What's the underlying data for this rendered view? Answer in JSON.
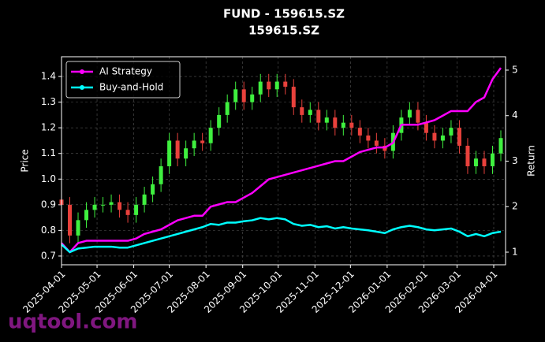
{
  "chart_data": {
    "type": "candlestick",
    "title": "FUND - 159615.SZ",
    "subtitle": "159615.SZ",
    "ylabel": "Price",
    "y2label": "Return",
    "watermark": "uqtool.com",
    "x": [
      "2025-04-01",
      "2025-04-08",
      "2025-04-15",
      "2025-04-22",
      "2025-04-29",
      "2025-05-06",
      "2025-05-13",
      "2025-05-20",
      "2025-05-27",
      "2025-06-03",
      "2025-06-10",
      "2025-06-17",
      "2025-06-24",
      "2025-07-01",
      "2025-07-08",
      "2025-07-15",
      "2025-07-22",
      "2025-07-29",
      "2025-08-05",
      "2025-08-12",
      "2025-08-19",
      "2025-08-26",
      "2025-09-02",
      "2025-09-09",
      "2025-09-16",
      "2025-09-23",
      "2025-09-30",
      "2025-10-07",
      "2025-10-14",
      "2025-10-21",
      "2025-10-28",
      "2025-11-04",
      "2025-11-11",
      "2025-11-18",
      "2025-11-25",
      "2025-12-02",
      "2025-12-09",
      "2025-12-16",
      "2025-12-23",
      "2025-12-30",
      "2026-01-06",
      "2026-01-13",
      "2026-01-20",
      "2026-01-27",
      "2026-02-03",
      "2026-02-10",
      "2026-02-17",
      "2026-02-24",
      "2026-03-03",
      "2026-03-10",
      "2026-03-17",
      "2026-03-24",
      "2026-03-31",
      "2026-04-07"
    ],
    "open": [
      0.92,
      0.9,
      0.78,
      0.84,
      0.88,
      0.9,
      0.9,
      0.91,
      0.88,
      0.86,
      0.9,
      0.94,
      0.98,
      1.05,
      1.15,
      1.08,
      1.12,
      1.15,
      1.14,
      1.2,
      1.25,
      1.3,
      1.35,
      1.3,
      1.33,
      1.38,
      1.35,
      1.38,
      1.36,
      1.28,
      1.25,
      1.27,
      1.22,
      1.24,
      1.2,
      1.22,
      1.2,
      1.17,
      1.15,
      1.13,
      1.11,
      1.18,
      1.24,
      1.27,
      1.22,
      1.18,
      1.15,
      1.17,
      1.2,
      1.13,
      1.05,
      1.08,
      1.05,
      1.1
    ],
    "high": [
      0.95,
      0.93,
      0.87,
      0.91,
      0.93,
      0.93,
      0.94,
      0.94,
      0.91,
      0.93,
      0.97,
      1.01,
      1.08,
      1.18,
      1.18,
      1.15,
      1.18,
      1.18,
      1.23,
      1.28,
      1.33,
      1.38,
      1.38,
      1.36,
      1.41,
      1.41,
      1.41,
      1.41,
      1.39,
      1.31,
      1.3,
      1.3,
      1.27,
      1.27,
      1.25,
      1.25,
      1.23,
      1.2,
      1.18,
      1.16,
      1.21,
      1.27,
      1.3,
      1.3,
      1.25,
      1.21,
      1.2,
      1.23,
      1.23,
      1.16,
      1.11,
      1.11,
      1.13,
      1.19
    ],
    "low": [
      0.87,
      0.75,
      0.75,
      0.81,
      0.85,
      0.87,
      0.87,
      0.85,
      0.83,
      0.83,
      0.87,
      0.91,
      0.95,
      1.02,
      1.05,
      1.05,
      1.09,
      1.11,
      1.11,
      1.17,
      1.22,
      1.27,
      1.27,
      1.27,
      1.3,
      1.32,
      1.32,
      1.33,
      1.25,
      1.22,
      1.22,
      1.19,
      1.19,
      1.17,
      1.17,
      1.17,
      1.14,
      1.12,
      1.1,
      1.08,
      1.08,
      1.15,
      1.21,
      1.19,
      1.15,
      1.12,
      1.12,
      1.14,
      1.1,
      1.02,
      1.02,
      1.02,
      1.02,
      1.07
    ],
    "close": [
      0.9,
      0.78,
      0.84,
      0.88,
      0.9,
      0.9,
      0.91,
      0.88,
      0.86,
      0.9,
      0.94,
      0.98,
      1.05,
      1.15,
      1.08,
      1.12,
      1.15,
      1.14,
      1.2,
      1.25,
      1.3,
      1.35,
      1.3,
      1.33,
      1.38,
      1.35,
      1.38,
      1.36,
      1.28,
      1.25,
      1.27,
      1.22,
      1.24,
      1.2,
      1.22,
      1.2,
      1.17,
      1.15,
      1.13,
      1.11,
      1.18,
      1.24,
      1.27,
      1.22,
      1.18,
      1.15,
      1.17,
      1.2,
      1.13,
      1.05,
      1.08,
      1.05,
      1.1,
      1.16
    ],
    "up_color": "#3ff03f",
    "down_color": "#e8413c",
    "series": [
      {
        "name": "AI Strategy",
        "color": "#ff00ff",
        "axis": "y2",
        "values": [
          1.2,
          1.0,
          1.2,
          1.25,
          1.25,
          1.25,
          1.25,
          1.25,
          1.25,
          1.3,
          1.4,
          1.45,
          1.5,
          1.6,
          1.7,
          1.75,
          1.8,
          1.8,
          2.0,
          2.05,
          2.1,
          2.1,
          2.2,
          2.3,
          2.45,
          2.6,
          2.65,
          2.7,
          2.75,
          2.8,
          2.85,
          2.9,
          2.95,
          3.0,
          3.0,
          3.1,
          3.2,
          3.25,
          3.3,
          3.3,
          3.4,
          3.8,
          3.8,
          3.8,
          3.85,
          3.9,
          4.0,
          4.1,
          4.1,
          4.1,
          4.3,
          4.4,
          4.8,
          5.05
        ]
      },
      {
        "name": "Buy-and-Hold",
        "color": "#00ffff",
        "axis": "y2",
        "values": [
          1.17,
          1.0,
          1.08,
          1.1,
          1.12,
          1.12,
          1.12,
          1.1,
          1.1,
          1.15,
          1.2,
          1.25,
          1.3,
          1.35,
          1.4,
          1.45,
          1.5,
          1.55,
          1.62,
          1.6,
          1.65,
          1.65,
          1.68,
          1.7,
          1.75,
          1.72,
          1.75,
          1.72,
          1.62,
          1.58,
          1.6,
          1.55,
          1.57,
          1.52,
          1.55,
          1.52,
          1.5,
          1.48,
          1.45,
          1.42,
          1.5,
          1.55,
          1.58,
          1.55,
          1.5,
          1.48,
          1.5,
          1.52,
          1.45,
          1.35,
          1.4,
          1.35,
          1.42,
          1.45
        ]
      }
    ],
    "xlim": [
      "2025-04-01",
      "2026-04-11"
    ],
    "xticks": [
      "2025-04-01",
      "2025-05-01",
      "2025-06-01",
      "2025-07-01",
      "2025-08-01",
      "2025-09-01",
      "2025-10-01",
      "2025-11-01",
      "2025-12-01",
      "2026-01-01",
      "2026-02-01",
      "2026-03-01",
      "2026-04-01"
    ],
    "ylim": [
      0.666,
      1.477
    ],
    "yticks": [
      0.7,
      0.8,
      0.9,
      {
        "value": 1,
        "label": "1.0"
      },
      1.1,
      1.2,
      1.3,
      1.4
    ],
    "y2lim": [
      0.723,
      5.294
    ],
    "y2ticks": [
      1,
      2,
      3,
      4,
      5
    ],
    "grid": true,
    "legend": "upper left"
  }
}
